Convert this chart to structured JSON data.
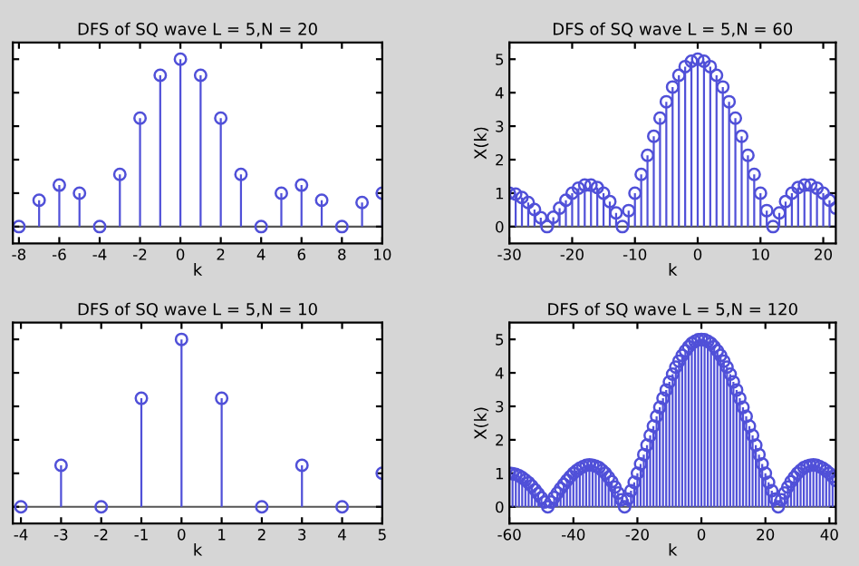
{
  "chart_data": [
    {
      "type": "lollipop",
      "title": "DFS of SQ wave L = 5,N = 20",
      "xlabel": "k",
      "marker": "circle",
      "tick_labels": "x",
      "xlim": [
        -8.3,
        10
      ],
      "xticks": [
        -8,
        -6,
        -4,
        -2,
        0,
        2,
        4,
        6,
        8,
        10
      ],
      "ylim": [
        -0.5,
        5.5
      ],
      "yticks": [
        {
          "value": 0,
          "label": null
        },
        {
          "value": 1,
          "label": null
        },
        {
          "value": 2,
          "label": null
        },
        {
          "value": 3,
          "label": null
        },
        {
          "value": 4,
          "label": null
        },
        {
          "value": 5,
          "label": null
        }
      ],
      "x": [
        -8,
        -7,
        -6,
        -5,
        -4,
        -3,
        -2,
        -1,
        0,
        1,
        2,
        3,
        4,
        5,
        6,
        7,
        8,
        9,
        10
      ],
      "series": [
        {
          "color": "#5050d8",
          "values": [
            0,
            0.79,
            1.24,
            1.0,
            0,
            1.56,
            3.24,
            4.52,
            5,
            4.52,
            3.24,
            1.56,
            0,
            1.0,
            1.24,
            0.79,
            0,
            0.72,
            1.0
          ]
        }
      ]
    },
    {
      "type": "lollipop",
      "title": "DFS of SQ wave L = 5,N = 60",
      "xlabel": "k",
      "ylabel": "X(k)",
      "marker": "circle",
      "xlim": [
        -30,
        22
      ],
      "xticks": [
        -30,
        -20,
        -10,
        0,
        10,
        20
      ],
      "ylim": [
        -0.5,
        5.5
      ],
      "yticks": [
        0,
        1,
        2,
        3,
        4,
        5
      ],
      "x": [
        -30,
        -29,
        -28,
        -27,
        -26,
        -25,
        -24,
        -23,
        -22,
        -21,
        -20,
        -19,
        -18,
        -17,
        -16,
        -15,
        -14,
        -13,
        -12,
        -11,
        -10,
        -9,
        -8,
        -7,
        -6,
        -5,
        -4,
        -3,
        -2,
        -1,
        0,
        1,
        2,
        3,
        4,
        5,
        6,
        7,
        8,
        9,
        10,
        11,
        12,
        13,
        14,
        15,
        16,
        17,
        18,
        19,
        20,
        21,
        22
      ],
      "series": [
        {
          "color": "#5050d8",
          "values": [
            1.0,
            0.97,
            0.87,
            0.72,
            0.51,
            0.27,
            0,
            0.28,
            0.55,
            0.79,
            1.0,
            1.15,
            1.24,
            1.24,
            1.17,
            1.0,
            0.75,
            0.41,
            0,
            0.48,
            1.0,
            1.56,
            2.13,
            2.7,
            3.24,
            3.73,
            4.17,
            4.52,
            4.78,
            4.94,
            5,
            4.94,
            4.78,
            4.52,
            4.17,
            3.73,
            3.24,
            2.7,
            2.13,
            1.56,
            1.0,
            0.48,
            0,
            0.41,
            0.75,
            1.0,
            1.17,
            1.24,
            1.24,
            1.15,
            1.0,
            0.79,
            0.55
          ]
        }
      ]
    },
    {
      "type": "lollipop",
      "title": "DFS of SQ wave L = 5,N = 10",
      "xlabel": "k",
      "marker": "circle",
      "tick_labels": "x",
      "xlim": [
        -4.2,
        5
      ],
      "xticks": [
        -4,
        -3,
        -2,
        -1,
        0,
        1,
        2,
        3,
        4,
        5
      ],
      "ylim": [
        -0.5,
        5.5
      ],
      "yticks": [
        {
          "value": 0,
          "label": null
        },
        {
          "value": 1,
          "label": null
        },
        {
          "value": 2,
          "label": null
        },
        {
          "value": 3,
          "label": null
        },
        {
          "value": 4,
          "label": null
        },
        {
          "value": 5,
          "label": null
        }
      ],
      "x": [
        -4,
        -3,
        -2,
        -1,
        0,
        1,
        2,
        3,
        4,
        5
      ],
      "series": [
        {
          "color": "#5050d8",
          "values": [
            0,
            1.24,
            0,
            3.24,
            5,
            3.24,
            0,
            1.24,
            0,
            1.0
          ]
        }
      ]
    },
    {
      "type": "lollipop",
      "title": "DFS of SQ wave L = 5,N = 120",
      "xlabel": "k",
      "ylabel": "X(k)",
      "marker": "circle",
      "xlim": [
        -60,
        42
      ],
      "xticks": [
        -60,
        -40,
        -20,
        0,
        20,
        40
      ],
      "ylim": [
        -0.5,
        5.5
      ],
      "yticks": [
        0,
        1,
        2,
        3,
        4,
        5
      ],
      "x": [
        -60,
        -59,
        -58,
        -57,
        -56,
        -55,
        -54,
        -53,
        -52,
        -51,
        -50,
        -49,
        -48,
        -47,
        -46,
        -45,
        -44,
        -43,
        -42,
        -41,
        -40,
        -39,
        -38,
        -37,
        -36,
        -35,
        -34,
        -33,
        -32,
        -31,
        -30,
        -29,
        -28,
        -27,
        -26,
        -25,
        -24,
        -23,
        -22,
        -21,
        -20,
        -19,
        -18,
        -17,
        -16,
        -15,
        -14,
        -13,
        -12,
        -11,
        -10,
        -9,
        -8,
        -7,
        -6,
        -5,
        -4,
        -3,
        -2,
        -1,
        0,
        1,
        2,
        3,
        4,
        5,
        6,
        7,
        8,
        9,
        10,
        11,
        12,
        13,
        14,
        15,
        16,
        17,
        18,
        19,
        20,
        21,
        22,
        23,
        24,
        25,
        26,
        27,
        28,
        29,
        30,
        31,
        32,
        33,
        34,
        35,
        36,
        37,
        38,
        39,
        40,
        41,
        42
      ],
      "series": [
        {
          "color": "#5050d8",
          "values": [
            1.0,
            0.99,
            0.97,
            0.93,
            0.87,
            0.8,
            0.72,
            0.62,
            0.51,
            0.39,
            0.27,
            0.14,
            0,
            0.14,
            0.28,
            0.41,
            0.55,
            0.67,
            0.79,
            0.9,
            1.0,
            1.08,
            1.15,
            1.2,
            1.24,
            1.25,
            1.24,
            1.21,
            1.17,
            1.09,
            1.0,
            0.88,
            0.75,
            0.59,
            0.41,
            0.21,
            0,
            0.23,
            0.48,
            0.73,
            1.0,
            1.28,
            1.56,
            1.84,
            2.13,
            2.41,
            2.7,
            2.97,
            3.24,
            3.49,
            3.73,
            3.96,
            4.17,
            4.35,
            4.52,
            4.66,
            4.78,
            4.88,
            4.94,
            4.99,
            5,
            4.99,
            4.94,
            4.88,
            4.78,
            4.66,
            4.52,
            4.35,
            4.17,
            3.96,
            3.73,
            3.49,
            3.24,
            2.97,
            2.7,
            2.41,
            2.13,
            1.84,
            1.56,
            1.28,
            1.0,
            0.73,
            0.48,
            0.23,
            0,
            0.21,
            0.41,
            0.59,
            0.75,
            0.88,
            1.0,
            1.09,
            1.17,
            1.21,
            1.24,
            1.25,
            1.24,
            1.2,
            1.15,
            1.08,
            1.0,
            0.9,
            0.79
          ]
        }
      ]
    }
  ]
}
